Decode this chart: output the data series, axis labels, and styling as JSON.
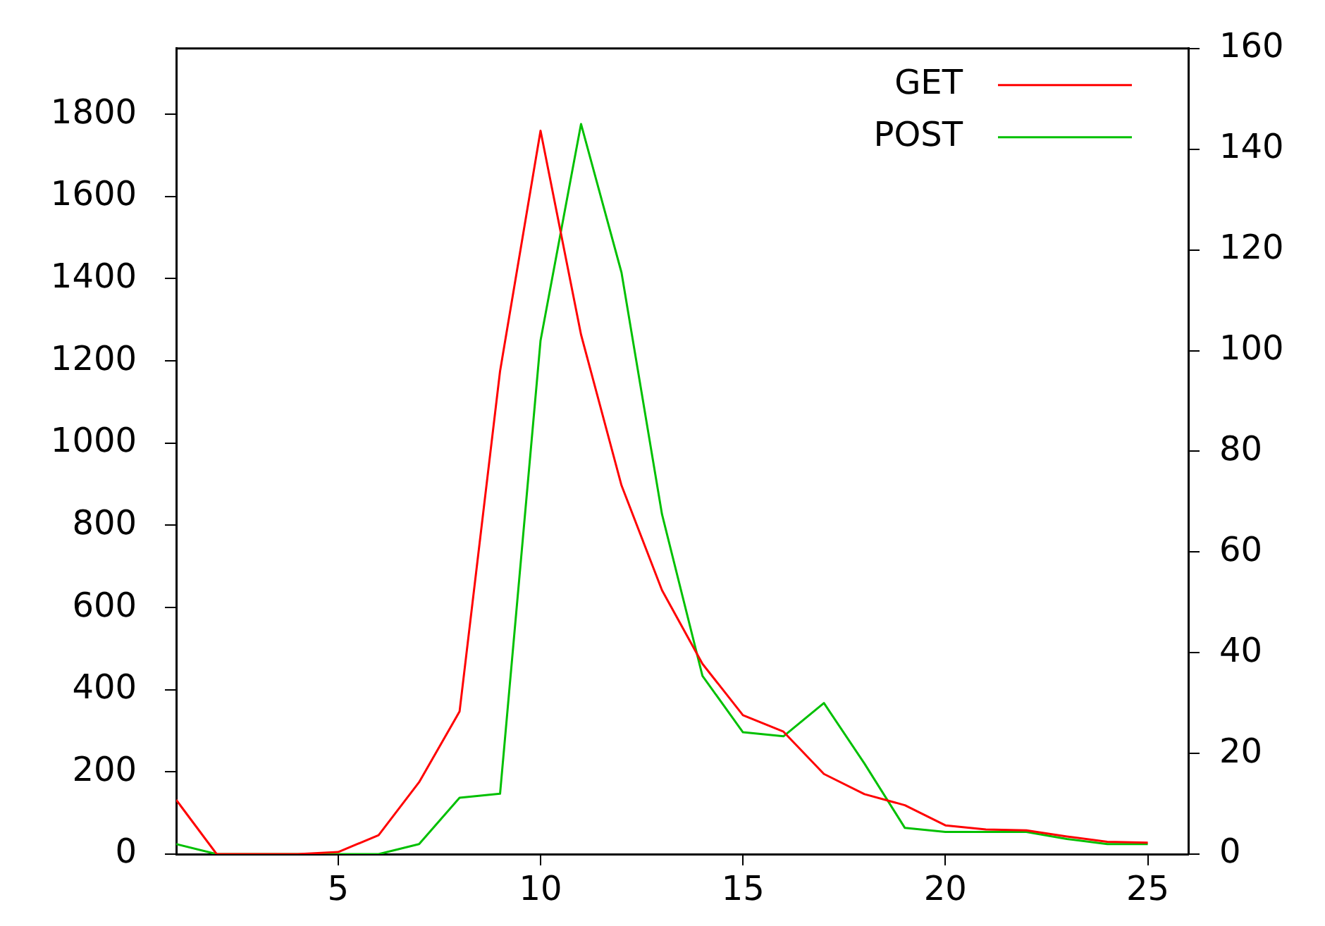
{
  "chart_data": {
    "type": "line",
    "x": [
      1,
      2,
      3,
      4,
      5,
      6,
      7,
      8,
      9,
      10,
      11,
      12,
      13,
      14,
      15,
      16,
      17,
      18,
      19,
      20,
      21,
      22,
      23,
      24,
      25
    ],
    "series": [
      {
        "name": "GET",
        "color": "#ff0000",
        "values": [
          132,
          0,
          0,
          0,
          5,
          46,
          175,
          347,
          1175,
          1760,
          1264,
          897,
          642,
          463,
          338,
          298,
          195,
          146,
          119,
          70,
          60,
          58,
          43,
          30,
          28
        ]
      },
      {
        "name": "POST",
        "color": "#00c000",
        "axis": "y2",
        "values": [
          2,
          0,
          0,
          0,
          0,
          0,
          2,
          11.2,
          12,
          102,
          145,
          115.5,
          67.5,
          35.4,
          24.2,
          23.4,
          30,
          18,
          5.2,
          4.4,
          4.4,
          4.4,
          3,
          2,
          2
        ]
      }
    ],
    "xlim": [
      1,
      26
    ],
    "xticks": [
      5,
      10,
      15,
      20,
      25
    ],
    "ylim": [
      0,
      1960
    ],
    "yticks": [
      0,
      200,
      400,
      600,
      800,
      1000,
      1200,
      1400,
      1600,
      1800
    ],
    "y2lim": [
      0,
      160
    ],
    "y2ticks": [
      0,
      20,
      40,
      60,
      80,
      100,
      120,
      140,
      160
    ],
    "legend": "top right",
    "grid": false,
    "marker": "none",
    "line_style": "solid"
  }
}
